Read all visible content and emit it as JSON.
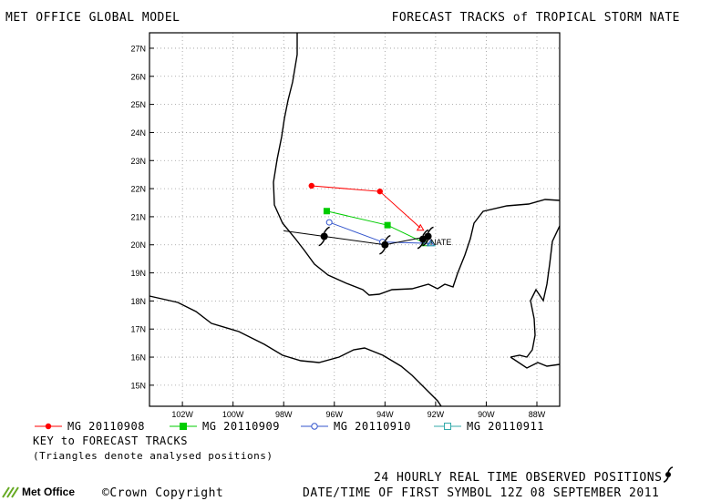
{
  "header": {
    "left_title": "MET OFFICE GLOBAL MODEL",
    "right_title": "FORECAST TRACKS of TROPICAL STORM NATE"
  },
  "map": {
    "lat_labels": [
      "27N",
      "26N",
      "25N",
      "24N",
      "23N",
      "22N",
      "21N",
      "20N",
      "19N",
      "18N",
      "17N",
      "16N",
      "15N"
    ],
    "lon_labels": [
      "102W",
      "100W",
      "98W",
      "96W",
      "94W",
      "92W",
      "90W",
      "88W"
    ],
    "storm_label": "NATE",
    "colors": {
      "grid": "#999999",
      "coast": "#000000",
      "track_observed": "#000000"
    },
    "tracks": [
      {
        "name": "MG 20110908",
        "color": "#ff0000",
        "marker": "filled-circle",
        "points": [
          [
            -92.6,
            20.6
          ],
          [
            -94.2,
            21.9
          ],
          [
            -96.9,
            22.1
          ]
        ]
      },
      {
        "name": "MG 20110909",
        "color": "#00cc00",
        "marker": "filled-square",
        "points": [
          [
            -92.4,
            20.05
          ],
          [
            -93.9,
            20.7
          ],
          [
            -96.3,
            21.2
          ]
        ]
      },
      {
        "name": "MG 20110910",
        "color": "#3355cc",
        "marker": "open-circle",
        "points": [
          [
            -92.2,
            20.05
          ],
          [
            -94.1,
            20.1
          ],
          [
            -96.2,
            20.8
          ]
        ]
      },
      {
        "name": "MG 20110911",
        "color": "#33aaaa",
        "marker": "open-square",
        "points": [
          [
            -92.15,
            20.05
          ]
        ]
      }
    ],
    "observed_positions": [
      [
        -96.4,
        20.3
      ],
      [
        -94.0,
        20.0
      ],
      [
        -92.3,
        20.3
      ],
      [
        -92.5,
        20.2
      ]
    ]
  },
  "legend": {
    "items": [
      {
        "label": "MG 20110908",
        "color": "#ff0000",
        "marker": "filled-circle"
      },
      {
        "label": "MG 20110909",
        "color": "#00cc00",
        "marker": "filled-square"
      },
      {
        "label": "MG 20110910",
        "color": "#3355cc",
        "marker": "open-circle"
      },
      {
        "label": "MG 20110911",
        "color": "#33aaaa",
        "marker": "open-square"
      }
    ],
    "key_title": "KEY to FORECAST TRACKS",
    "key_note": "(Triangles denote analysed positions)"
  },
  "footer": {
    "observed_note": "24 HOURLY REAL TIME OBSERVED POSITIONS",
    "copyright": "©Crown Copyright",
    "datetime": "DATE/TIME OF FIRST SYMBOL 12Z 08 SEPTEMBER 2011",
    "logo_text": "Met Office"
  }
}
